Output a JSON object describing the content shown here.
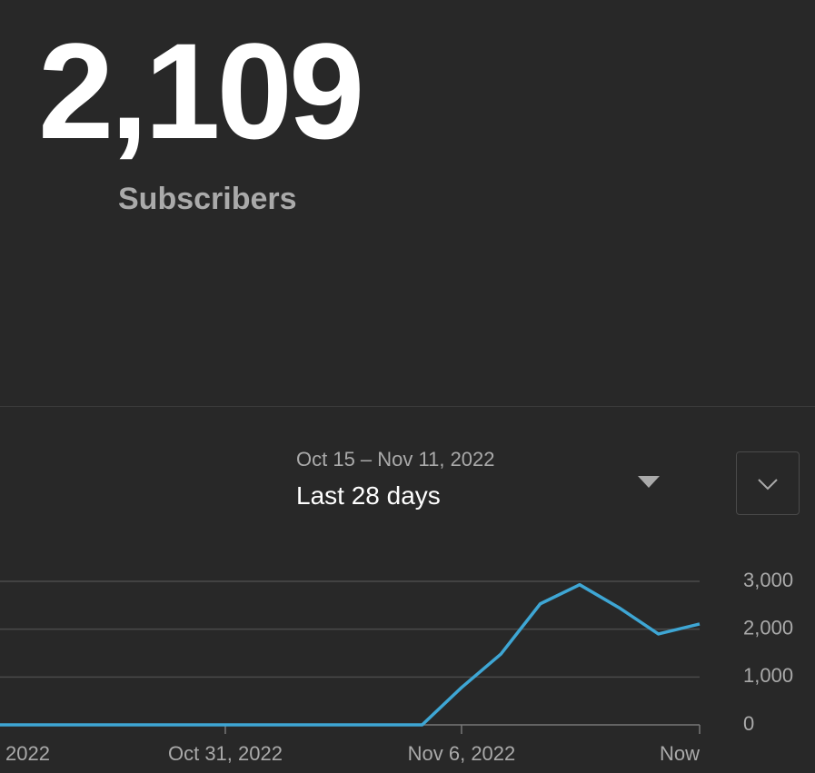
{
  "summary": {
    "total": "2,109",
    "label": "Subscribers"
  },
  "period": {
    "range": "Oct 15 – Nov 11, 2022",
    "name": "Last 28 days"
  },
  "chart_data": {
    "type": "line",
    "categories": [
      "2022",
      null,
      null,
      null,
      null,
      null,
      "Oct 31, 2022",
      null,
      null,
      null,
      null,
      null,
      "Nov 6, 2022",
      null,
      null,
      null,
      null,
      null,
      "Now"
    ],
    "series": [
      {
        "name": "Subscribers",
        "color": "#3ea6d4",
        "values": [
          0,
          0,
          0,
          0,
          0,
          0,
          0,
          0,
          0,
          0,
          0,
          0,
          780,
          1480,
          2530,
          2930,
          2450,
          1900,
          2109
        ]
      }
    ],
    "ylim": [
      0,
      3000
    ],
    "yticks": [
      {
        "value": 0,
        "label": "0"
      },
      {
        "value": 1000,
        "label": "1,000"
      },
      {
        "value": 2000,
        "label": "2,000"
      },
      {
        "value": 3000,
        "label": "3,000"
      }
    ],
    "grid": true
  }
}
